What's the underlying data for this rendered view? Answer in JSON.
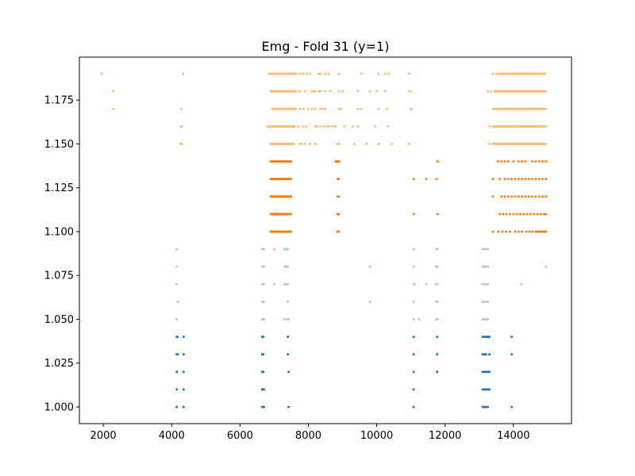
{
  "chart_data": {
    "type": "scatter",
    "title": "Emg - Fold 31 (y=1)",
    "xlabel": "",
    "ylabel": "",
    "xlim": [
      1300,
      15700
    ],
    "ylim": [
      0.9905,
      1.1995
    ],
    "xticks": [
      2000,
      4000,
      6000,
      8000,
      10000,
      12000,
      14000
    ],
    "xtick_labels": [
      "2000",
      "4000",
      "6000",
      "8000",
      "10000",
      "12000",
      "14000"
    ],
    "yticks": [
      1.0,
      1.025,
      1.05,
      1.075,
      1.1,
      1.125,
      1.15,
      1.175
    ],
    "ytick_labels": [
      "1.000",
      "1.025",
      "1.050",
      "1.075",
      "1.100",
      "1.125",
      "1.150",
      "1.175"
    ],
    "grid": false,
    "series": [
      {
        "name": "group-dark-blue",
        "color": "#1f77b4",
        "rows": [
          {
            "y": 1.0,
            "x": [
              4150,
              4350,
              6650,
              6680,
              6700,
              7420,
              11080,
              13100,
              13150,
              13200,
              13250,
              13950
            ]
          },
          {
            "y": 1.01,
            "x": [
              4150,
              4350,
              6650,
              6680,
              6700,
              11080,
              13100,
              13150,
              13200,
              13250,
              13300
            ]
          },
          {
            "y": 1.02,
            "x": [
              4150,
              4350,
              6650,
              6680,
              7420,
              11080,
              11770,
              13100,
              13150,
              13200,
              13250,
              13300
            ]
          },
          {
            "y": 1.03,
            "x": [
              4150,
              4170,
              4350,
              6650,
              6680,
              7400,
              11080,
              11770,
              13100,
              13150,
              13200,
              13300,
              13950
            ]
          },
          {
            "y": 1.04,
            "x": [
              4150,
              4170,
              4350,
              6650,
              6680,
              7400,
              11080,
              11770,
              13100,
              13150,
              13200,
              13250,
              13300,
              13950
            ]
          }
        ]
      },
      {
        "name": "group-light-blue",
        "color": "#aec7e8",
        "rows": [
          {
            "y": 1.05,
            "x": [
              4150,
              6650,
              6700,
              7300,
              7380,
              7420,
              11080,
              11240,
              11740,
              11780,
              13100,
              13150,
              13200,
              13250
            ]
          },
          {
            "y": 1.06,
            "x": [
              4180,
              6650,
              6700,
              7400,
              9800,
              11080,
              11740,
              11780,
              13100,
              13150,
              13200,
              13250
            ]
          },
          {
            "y": 1.07,
            "x": [
              4150,
              6650,
              6700,
              7000,
              7300,
              7350,
              7400,
              11080,
              11100,
              11450,
              11740,
              11780,
              13100,
              13150,
              13200,
              13250,
              14230
            ]
          },
          {
            "y": 1.08,
            "x": [
              4150,
              6650,
              6700,
              7300,
              7350,
              7400,
              9800,
              11080,
              11740,
              11780,
              13100,
              13150,
              13200,
              13250,
              14950
            ]
          },
          {
            "y": 1.09,
            "x": [
              4150,
              6650,
              6700,
              7000,
              7300,
              7350,
              7400,
              11080,
              11740,
              11780,
              13100,
              13150,
              13200,
              13250
            ]
          }
        ]
      },
      {
        "name": "group-dark-orange",
        "color": "#ff7f0e",
        "rows": [
          {
            "y": 1.1,
            "span": [
              6900,
              7500
            ],
            "x": [
              8850,
              8870,
              8890,
              13400,
              13560,
              13680,
              13790,
              13900,
              14050,
              14150,
              14250,
              14380,
              14470,
              14550,
              14650,
              14700,
              14750,
              14800,
              14850,
              14900,
              14950
            ]
          },
          {
            "y": 1.11,
            "span": [
              6900,
              7500
            ],
            "x": [
              8850,
              8870,
              8890,
              11080,
              11780,
              13600,
              13700,
              13800,
              13900,
              14000,
              14100,
              14200,
              14300,
              14400,
              14500,
              14600,
              14700,
              14800,
              14900,
              14950
            ]
          },
          {
            "y": 1.12,
            "span": [
              6900,
              7500
            ],
            "x": [
              8860,
              8890,
              13400,
              13650,
              13750,
              13850,
              13950,
              14050,
              14150,
              14250,
              14350,
              14450,
              14550,
              14650,
              14750,
              14850,
              14950
            ]
          },
          {
            "y": 1.13,
            "span": [
              6900,
              7500
            ],
            "x": [
              8860,
              8890,
              11080,
              11450,
              11750,
              13400,
              13600,
              13750,
              13850,
              13950,
              14050,
              14150,
              14250,
              14350,
              14450,
              14550,
              14650,
              14750,
              14850,
              14950
            ]
          },
          {
            "y": 1.14,
            "span": [
              6900,
              7500
            ],
            "x": [
              8800,
              8820,
              8840,
              8860,
              8880,
              8900,
              11780,
              13550,
              13650,
              13750,
              13850,
              14000,
              14150,
              14250,
              14350,
              14550,
              14650,
              14750,
              14850,
              14950
            ]
          }
        ]
      },
      {
        "name": "group-light-orange",
        "color": "#ffbb78",
        "rows": [
          {
            "y": 1.15,
            "span": [
              6900,
              7600
            ],
            "x": [
              4250,
              4300,
              7750,
              7800,
              7900,
              8050,
              8200,
              8220,
              8850,
              8900,
              9350,
              9700,
              10050,
              10450,
              10950,
              13300,
              13400,
              13450
            ],
            "span2": [
              13500,
              14950
            ]
          },
          {
            "y": 1.16,
            "span": [
              6800,
              7600
            ],
            "x": [
              4270,
              4300,
              7700,
              7850,
              7950,
              8200,
              8250,
              8350,
              8450,
              8550,
              8600,
              8700,
              8780,
              8800,
              9050,
              9300,
              9450,
              9950,
              10330,
              13300,
              13400
            ],
            "span2": [
              13450,
              14950
            ]
          },
          {
            "y": 1.17,
            "span": [
              6950,
              7650
            ],
            "x": [
              2300,
              4280,
              7750,
              7850,
              8000,
              8100,
              8200,
              8350,
              8420,
              8500,
              8900,
              8950,
              9450,
              9550,
              10050,
              10300,
              11000,
              11020,
              13400
            ],
            "span2": [
              13450,
              14950
            ]
          },
          {
            "y": 1.18,
            "span": [
              6900,
              7650
            ],
            "x": [
              2300,
              7750,
              7900,
              8100,
              8150,
              8200,
              8300,
              8350,
              8500,
              8650,
              8900,
              9000,
              9450,
              9800,
              10000,
              10250,
              10950,
              11000,
              13250,
              13350
            ],
            "span2": [
              13450,
              14950
            ]
          },
          {
            "y": 1.19,
            "span": [
              6850,
              7650
            ],
            "x": [
              1950,
              4330,
              7750,
              7850,
              7950,
              8050,
              8300,
              8350,
              8500,
              8600,
              8900,
              9550,
              10050,
              10250,
              10350,
              10950,
              13400,
              13500
            ],
            "span2": [
              13550,
              14950
            ]
          }
        ]
      }
    ]
  }
}
